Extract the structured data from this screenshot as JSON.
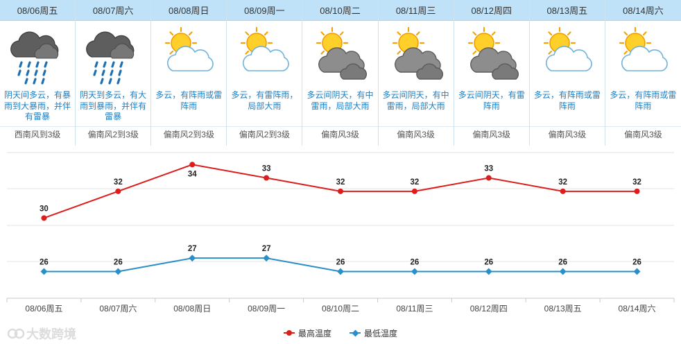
{
  "colors": {
    "high": "#dd1c1c",
    "low": "#2a8fc6",
    "header_bg": "#bfe2f8",
    "desc_text": "#1e7fc2"
  },
  "days": [
    {
      "date": "08/06周五",
      "icon": "rain-heavy-icon",
      "desc": "阴天间多云，有暴雨到大暴雨，并伴有雷暴",
      "wind": "西南风到3级"
    },
    {
      "date": "08/07周六",
      "icon": "rain-heavy-icon",
      "desc": "阴天到多云，有大雨到暴雨，并伴有雷暴",
      "wind": "偏南风2到3级"
    },
    {
      "date": "08/08周日",
      "icon": "sun-cloud-icon",
      "desc": "多云，有阵雨或雷阵雨",
      "wind": "偏南风2到3级"
    },
    {
      "date": "08/09周一",
      "icon": "sun-cloud-icon",
      "desc": "多云，有雷阵雨，局部大雨",
      "wind": "偏南风2到3级"
    },
    {
      "date": "08/10周二",
      "icon": "sun-dark-cloud-icon",
      "desc": "多云间阴天，有中雷雨，局部大雨",
      "wind": "偏南风3级"
    },
    {
      "date": "08/11周三",
      "icon": "sun-dark-cloud-icon",
      "desc": "多云间阴天，有中雷雨，局部大雨",
      "wind": "偏南风3级"
    },
    {
      "date": "08/12周四",
      "icon": "sun-dark-cloud-icon",
      "desc": "多云间阴天，有雷阵雨",
      "wind": "偏南风3级"
    },
    {
      "date": "08/13周五",
      "icon": "sun-cloud-icon",
      "desc": "多云，有阵雨或雷阵雨",
      "wind": "偏南风3级"
    },
    {
      "date": "08/14周六",
      "icon": "sun-cloud-icon",
      "desc": "多云，有阵雨或雷阵雨",
      "wind": "偏南风3级"
    }
  ],
  "chart_data": {
    "type": "line",
    "categories": [
      "08/06周五",
      "08/07周六",
      "08/08周日",
      "08/09周一",
      "08/10周二",
      "08/11周三",
      "08/12周四",
      "08/13周五",
      "08/14周六"
    ],
    "series": [
      {
        "name": "最高温度",
        "values": [
          30,
          32,
          34,
          33,
          32,
          32,
          33,
          32,
          32
        ]
      },
      {
        "name": "最低温度",
        "values": [
          26,
          26,
          27,
          27,
          26,
          26,
          26,
          26,
          26
        ]
      }
    ],
    "ylim": [
      24,
      35
    ],
    "grid": true,
    "legend": "bottom-center",
    "data_labels": true
  },
  "legend": {
    "high_label": "最高温度",
    "low_label": "最低温度"
  },
  "watermark": "大数跨境"
}
